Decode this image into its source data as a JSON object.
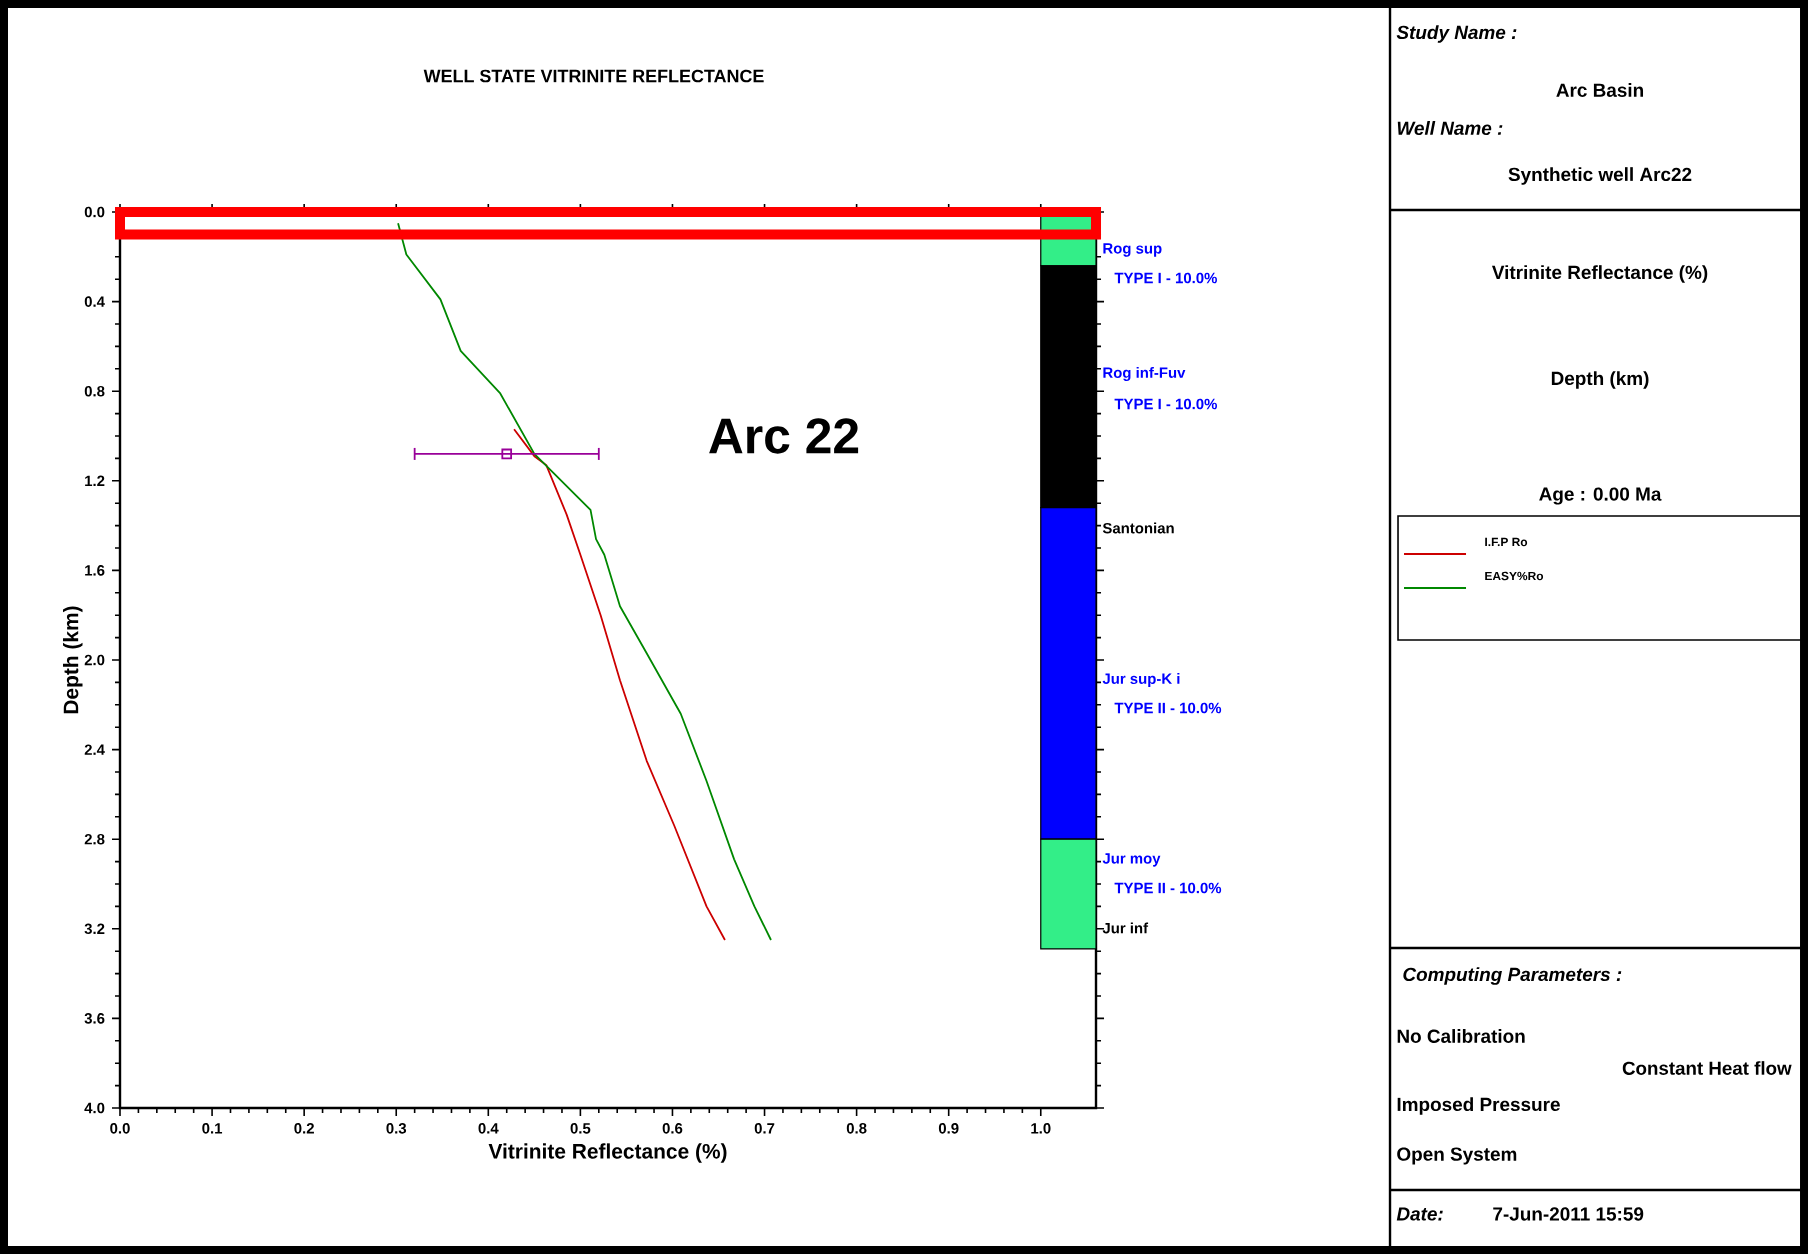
{
  "chart_data": {
    "type": "line",
    "title": "WELL STATE VITRINITE REFLECTANCE",
    "xlabel": "Vitrinite Reflectance (%)",
    "ylabel": "Depth (km)",
    "xlim": [
      0,
      1.06
    ],
    "ylim": [
      4.0,
      0.0
    ],
    "xticks": [
      {
        "value": 0,
        "label": "0.0"
      },
      {
        "value": 0.1,
        "label": "0.1"
      },
      {
        "value": 0.2,
        "label": "0.2"
      },
      {
        "value": 0.3,
        "label": "0.3"
      },
      {
        "value": 0.4,
        "label": "0.4"
      },
      {
        "value": 0.5,
        "label": "0.5"
      },
      {
        "value": 0.6,
        "label": "0.6"
      },
      {
        "value": 0.7,
        "label": "0.7"
      },
      {
        "value": 0.8,
        "label": "0.8"
      },
      {
        "value": 0.9,
        "label": "0.9"
      },
      {
        "value": 1.0,
        "label": "1.0"
      }
    ],
    "yticks": [
      {
        "value": 0,
        "label": "0.0"
      },
      {
        "value": 0.4,
        "label": "0.4"
      },
      {
        "value": 0.8,
        "label": "0.8"
      },
      {
        "value": 1.2,
        "label": "1.2"
      },
      {
        "value": 1.6,
        "label": "1.6"
      },
      {
        "value": 2.0,
        "label": "2.0"
      },
      {
        "value": 2.4,
        "label": "2.4"
      },
      {
        "value": 2.8,
        "label": "2.8"
      },
      {
        "value": 3.2,
        "label": "3.2"
      },
      {
        "value": 3.6,
        "label": "3.6"
      },
      {
        "value": 4.0,
        "label": "4.0"
      }
    ],
    "grid": false,
    "legend": "right",
    "series": [
      {
        "name": "I.F.P Ro",
        "color": "#cc0000",
        "x": [
          0.428,
          0.45,
          0.463,
          0.485,
          0.5,
          0.522,
          0.543,
          0.572,
          0.602,
          0.637,
          0.657
        ],
        "values": [
          0.97,
          1.09,
          1.13,
          1.35,
          1.53,
          1.8,
          2.09,
          2.45,
          2.74,
          3.1,
          3.25
        ]
      },
      {
        "name": "EASY%Ro",
        "color": "#008800",
        "x": [
          0.302,
          0.311,
          0.348,
          0.37,
          0.413,
          0.45,
          0.511,
          0.517,
          0.526,
          0.543,
          0.572,
          0.609,
          0.637,
          0.667,
          0.689,
          0.707
        ],
        "values": [
          0.05,
          0.19,
          0.39,
          0.62,
          0.81,
          1.08,
          1.33,
          1.46,
          1.53,
          1.76,
          1.97,
          2.24,
          2.54,
          2.89,
          3.1,
          3.25
        ]
      },
      {
        "type": "scatter",
        "marker": "square",
        "color": "#990099",
        "x": [
          0.42
        ],
        "values": [
          1.08
        ],
        "xerrors": [
          [
            0.32,
            0.52
          ]
        ]
      }
    ],
    "bands": [
      {
        "axis": "y",
        "from": 0.0,
        "to": 0.24,
        "color": "#33ee88"
      },
      {
        "axis": "y",
        "from": 0.24,
        "to": 1.32,
        "color": "#000000"
      },
      {
        "axis": "y",
        "from": 1.32,
        "to": 2.8,
        "color": "#0000ff"
      },
      {
        "axis": "y",
        "from": 2.8,
        "to": 3.29,
        "color": "#33ee88"
      }
    ],
    "annotations": [
      "Rog sup",
      "TYPE I - 10.0%",
      "Rog inf-Fuv",
      "TYPE I - 10.0%",
      "Santonian",
      "Jur sup-K i",
      "TYPE II - 10.0%",
      "Jur moy",
      "TYPE II - 10.0%",
      "Jur inf",
      "Arc 22",
      "Study Name :",
      "Arc Basin",
      "Well Name :",
      "Synthetic well Arc22",
      "Vitrinite Reflectance (%)",
      "Depth (km)",
      "Age : 0.00 Ma",
      "Computing Parameters :",
      "No Calibration",
      "Constant Heat flow",
      "Imposed Pressure",
      "Open System",
      "Date:",
      "7-Jun-2011  15:59"
    ]
  }
}
